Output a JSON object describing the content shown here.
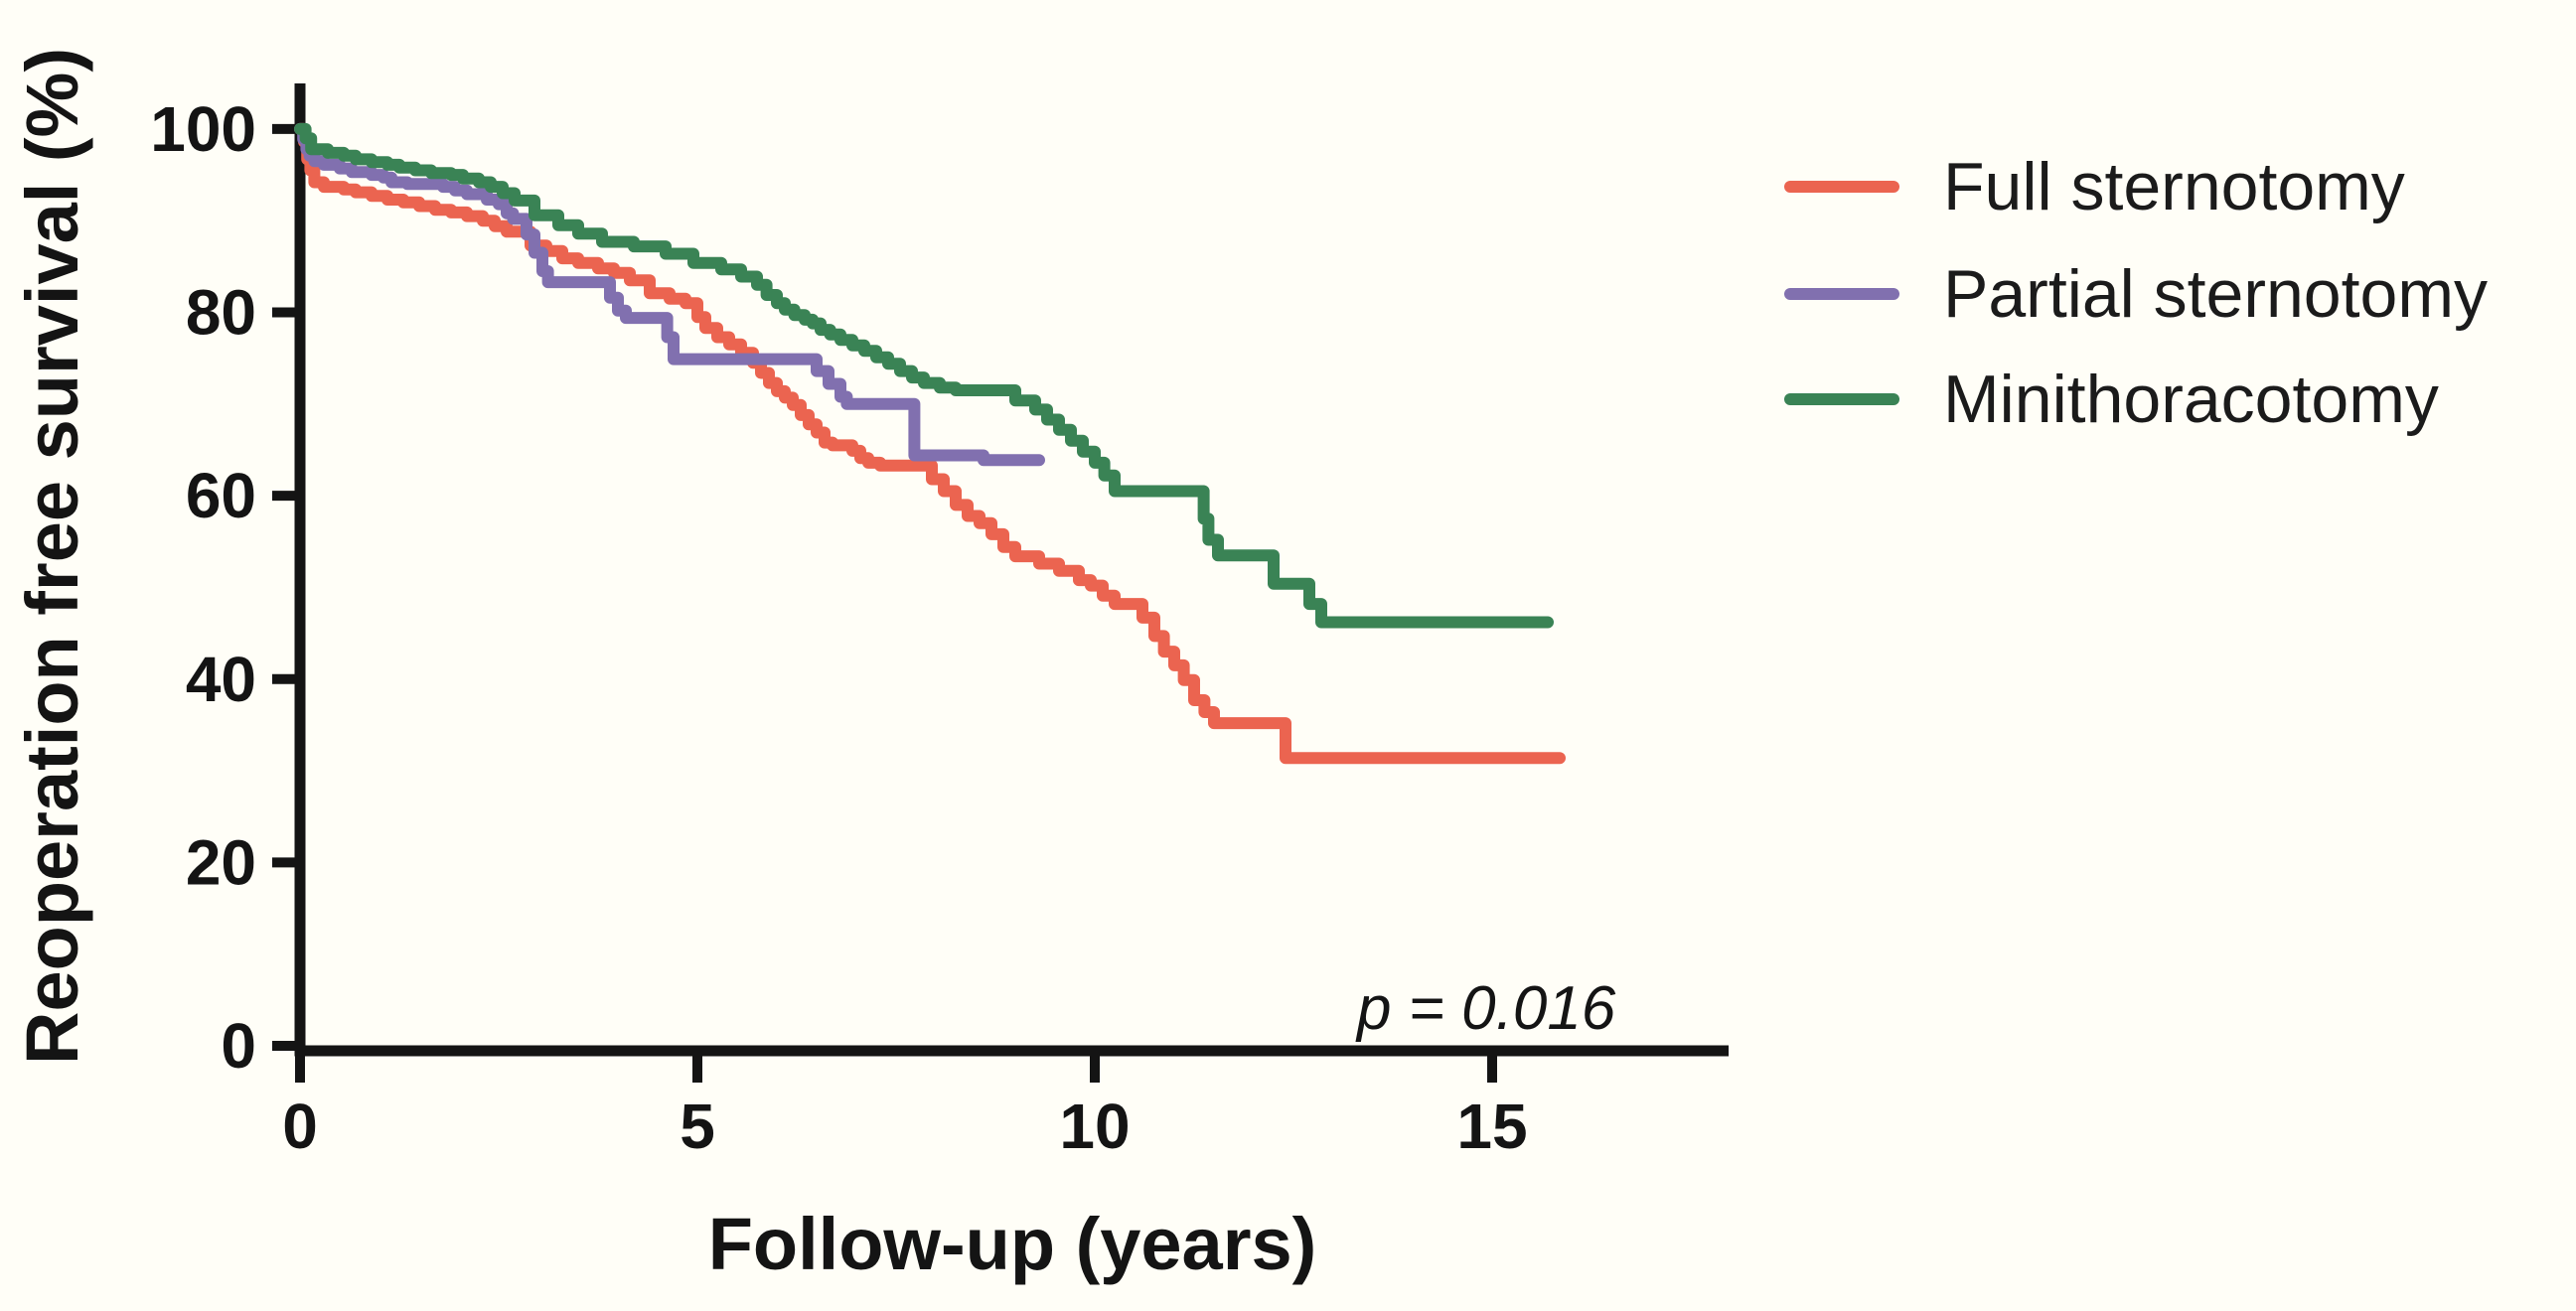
{
  "figure": {
    "background": "#fffef7",
    "axis_color": "#141414"
  },
  "chart_data": {
    "type": "line",
    "subtype": "kaplan-meier-step",
    "title": "",
    "xlabel": "Follow-up (years)",
    "ylabel": "Reoperation free survival (%)",
    "xlim": [
      0,
      18
    ],
    "ylim": [
      0,
      105
    ],
    "xticks": [
      0,
      5,
      10,
      15
    ],
    "yticks": [
      0,
      20,
      40,
      60,
      80,
      100
    ],
    "grid": false,
    "legend_position": "right",
    "annotation": {
      "text": "p = 0.016"
    },
    "series": [
      {
        "name": "Full sternotomy",
        "color": "#EB6450",
        "end_t": 15.85,
        "points": [
          [
            0,
            100
          ],
          [
            0.05,
            98.6
          ],
          [
            0.09,
            96.7
          ],
          [
            0.13,
            95.5
          ],
          [
            0.18,
            94.2
          ],
          [
            0.3,
            93.7
          ],
          [
            0.55,
            93.4
          ],
          [
            0.7,
            93.1
          ],
          [
            0.9,
            92.7
          ],
          [
            1.1,
            92.3
          ],
          [
            1.3,
            92.0
          ],
          [
            1.5,
            91.6
          ],
          [
            1.7,
            91.2
          ],
          [
            1.9,
            90.9
          ],
          [
            2.1,
            90.5
          ],
          [
            2.3,
            90.0
          ],
          [
            2.45,
            89.4
          ],
          [
            2.6,
            88.8
          ],
          [
            2.9,
            87.3
          ],
          [
            3.1,
            86.7
          ],
          [
            3.3,
            85.9
          ],
          [
            3.5,
            85.4
          ],
          [
            3.75,
            84.8
          ],
          [
            3.95,
            84.3
          ],
          [
            4.15,
            83.5
          ],
          [
            4.4,
            82.1
          ],
          [
            4.65,
            81.5
          ],
          [
            4.85,
            81.0
          ],
          [
            5.0,
            79.5
          ],
          [
            5.1,
            78.3
          ],
          [
            5.25,
            77.3
          ],
          [
            5.4,
            76.5
          ],
          [
            5.55,
            75.6
          ],
          [
            5.7,
            74.5
          ],
          [
            5.8,
            73.4
          ],
          [
            5.9,
            72.3
          ],
          [
            6.0,
            71.4
          ],
          [
            6.1,
            70.7
          ],
          [
            6.2,
            69.9
          ],
          [
            6.3,
            68.8
          ],
          [
            6.4,
            67.8
          ],
          [
            6.5,
            66.9
          ],
          [
            6.6,
            65.8
          ],
          [
            6.7,
            65.5
          ],
          [
            6.95,
            64.9
          ],
          [
            7.05,
            64.1
          ],
          [
            7.15,
            63.6
          ],
          [
            7.3,
            63.3
          ],
          [
            7.95,
            61.8
          ],
          [
            8.1,
            60.5
          ],
          [
            8.25,
            59.0
          ],
          [
            8.4,
            57.8
          ],
          [
            8.55,
            57.0
          ],
          [
            8.7,
            55.8
          ],
          [
            8.85,
            54.4
          ],
          [
            9.0,
            53.4
          ],
          [
            9.3,
            52.6
          ],
          [
            9.55,
            51.8
          ],
          [
            9.8,
            50.8
          ],
          [
            9.95,
            50.2
          ],
          [
            10.1,
            49.1
          ],
          [
            10.25,
            48.2
          ],
          [
            10.6,
            46.7
          ],
          [
            10.75,
            44.7
          ],
          [
            10.87,
            43.0
          ],
          [
            11.0,
            41.5
          ],
          [
            11.12,
            39.9
          ],
          [
            11.25,
            37.7
          ],
          [
            11.38,
            36.4
          ],
          [
            11.5,
            35.2
          ],
          [
            12.4,
            31.4
          ]
        ]
      },
      {
        "name": "Partial sternotomy",
        "color": "#8170AF",
        "end_t": 9.3,
        "points": [
          [
            0,
            100
          ],
          [
            0.04,
            98.9
          ],
          [
            0.08,
            97.8
          ],
          [
            0.12,
            97.1
          ],
          [
            0.18,
            96.5
          ],
          [
            0.3,
            96.1
          ],
          [
            0.5,
            95.7
          ],
          [
            0.65,
            95.3
          ],
          [
            0.9,
            95.0
          ],
          [
            1.05,
            94.7
          ],
          [
            1.15,
            94.2
          ],
          [
            1.35,
            94.0
          ],
          [
            1.8,
            93.7
          ],
          [
            1.95,
            93.3
          ],
          [
            2.1,
            92.9
          ],
          [
            2.35,
            92.3
          ],
          [
            2.5,
            91.8
          ],
          [
            2.6,
            90.8
          ],
          [
            2.68,
            90.2
          ],
          [
            2.85,
            88.5
          ],
          [
            2.95,
            86.5
          ],
          [
            3.05,
            84.5
          ],
          [
            3.12,
            83.3
          ],
          [
            3.9,
            81.6
          ],
          [
            4.0,
            80.2
          ],
          [
            4.1,
            79.4
          ],
          [
            4.62,
            77.3
          ],
          [
            4.7,
            74.9
          ],
          [
            6.5,
            73.6
          ],
          [
            6.65,
            72.2
          ],
          [
            6.8,
            70.8
          ],
          [
            6.88,
            70.0
          ],
          [
            7.73,
            64.4
          ],
          [
            8.6,
            63.9
          ]
        ]
      },
      {
        "name": "Minithoracotomy",
        "color": "#3A8355",
        "end_t": 15.7,
        "points": [
          [
            0,
            100
          ],
          [
            0.07,
            99.0
          ],
          [
            0.14,
            97.8
          ],
          [
            0.35,
            97.4
          ],
          [
            0.55,
            97.1
          ],
          [
            0.7,
            96.7
          ],
          [
            0.9,
            96.4
          ],
          [
            1.1,
            96.1
          ],
          [
            1.25,
            95.8
          ],
          [
            1.45,
            95.5
          ],
          [
            1.65,
            95.2
          ],
          [
            1.9,
            95.0
          ],
          [
            2.05,
            94.6
          ],
          [
            2.25,
            94.2
          ],
          [
            2.4,
            93.7
          ],
          [
            2.55,
            93.0
          ],
          [
            2.7,
            92.2
          ],
          [
            2.95,
            90.6
          ],
          [
            3.25,
            89.5
          ],
          [
            3.5,
            88.6
          ],
          [
            3.8,
            87.7
          ],
          [
            4.2,
            87.2
          ],
          [
            4.6,
            86.4
          ],
          [
            4.95,
            85.4
          ],
          [
            5.3,
            84.7
          ],
          [
            5.55,
            83.9
          ],
          [
            5.75,
            83.0
          ],
          [
            5.87,
            81.9
          ],
          [
            6.0,
            81.0
          ],
          [
            6.1,
            80.3
          ],
          [
            6.22,
            79.7
          ],
          [
            6.35,
            79.2
          ],
          [
            6.45,
            78.8
          ],
          [
            6.55,
            78.1
          ],
          [
            6.67,
            77.6
          ],
          [
            6.8,
            77.0
          ],
          [
            6.95,
            76.4
          ],
          [
            7.1,
            75.8
          ],
          [
            7.25,
            75.1
          ],
          [
            7.4,
            74.4
          ],
          [
            7.55,
            73.6
          ],
          [
            7.7,
            72.9
          ],
          [
            7.85,
            72.3
          ],
          [
            8.05,
            71.8
          ],
          [
            8.25,
            71.5
          ],
          [
            9.0,
            70.4
          ],
          [
            9.25,
            69.4
          ],
          [
            9.4,
            68.3
          ],
          [
            9.55,
            67.2
          ],
          [
            9.7,
            66.0
          ],
          [
            9.85,
            64.8
          ],
          [
            10.0,
            63.6
          ],
          [
            10.12,
            62.2
          ],
          [
            10.25,
            60.5
          ],
          [
            11.37,
            57.5
          ],
          [
            11.43,
            55.2
          ],
          [
            11.55,
            53.5
          ],
          [
            12.25,
            50.4
          ],
          [
            12.7,
            48.2
          ],
          [
            12.85,
            46.2
          ]
        ]
      }
    ]
  },
  "legend": {
    "items": [
      {
        "label": "Full sternotomy"
      },
      {
        "label": "Partial sternotomy"
      },
      {
        "label": "Minithoracotomy"
      }
    ]
  }
}
